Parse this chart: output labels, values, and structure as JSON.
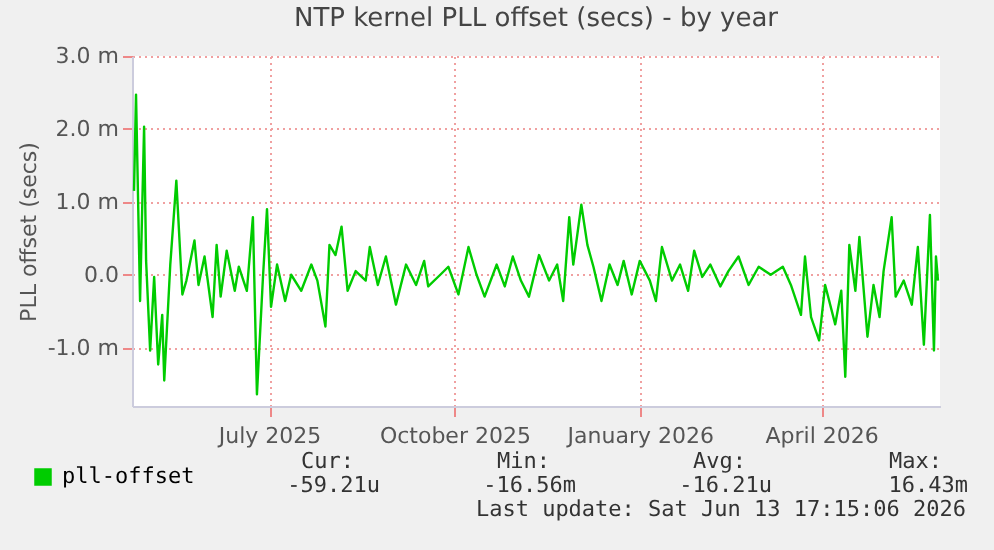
{
  "chart_data": {
    "type": "line",
    "title": "NTP kernel PLL offset (secs) - by year",
    "ylabel": "PLL offset (secs)",
    "xlim": [
      "2025-05-09",
      "2026-06-14"
    ],
    "xticks": [
      {
        "value": "2025-07-16",
        "label": "July 2025"
      },
      {
        "value": "2025-10-16",
        "label": "October 2025"
      },
      {
        "value": "2026-01-16",
        "label": "January 2026"
      },
      {
        "value": "2026-04-16",
        "label": "April 2026"
      }
    ],
    "ylim": [
      -1.8,
      3.0
    ],
    "yticks": [
      {
        "value": -1,
        "label": "-1.0 m"
      },
      {
        "value": 0,
        "label": "0.0"
      },
      {
        "value": 1,
        "label": "1.0 m"
      },
      {
        "value": 2,
        "label": "2.0 m"
      },
      {
        "value": 3,
        "label": "3.0 m"
      }
    ],
    "grid": true,
    "legend": "bottom left",
    "marker": "none",
    "line_style": "solid",
    "annotations": [
      "Cur:",
      "Min:",
      "Avg:",
      "Max:",
      "-59.21u",
      "-16.56m",
      "-16.21u",
      "16.43m",
      "Last update: Sat Jun 13 17:15:06 2026"
    ],
    "x": [
      "2025-05-10",
      "2025-05-11",
      "2025-05-13",
      "2025-05-15",
      "2025-05-16",
      "2025-05-18",
      "2025-05-20",
      "2025-05-22",
      "2025-05-24",
      "2025-05-25",
      "2025-05-28",
      "2025-05-31",
      "2025-06-03",
      "2025-06-05",
      "2025-06-09",
      "2025-06-11",
      "2025-06-14",
      "2025-06-18",
      "2025-06-20",
      "2025-06-22",
      "2025-06-25",
      "2025-06-29",
      "2025-07-01",
      "2025-07-05",
      "2025-07-08",
      "2025-07-10",
      "2025-07-13",
      "2025-07-15",
      "2025-07-17",
      "2025-07-20",
      "2025-07-24",
      "2025-07-27",
      "2025-08-01",
      "2025-08-06",
      "2025-08-09",
      "2025-08-13",
      "2025-08-15",
      "2025-08-18",
      "2025-08-21",
      "2025-08-24",
      "2025-08-28",
      "2025-09-02",
      "2025-09-04",
      "2025-09-08",
      "2025-09-12",
      "2025-09-17",
      "2025-09-22",
      "2025-09-27",
      "2025-10-01",
      "2025-10-03",
      "2025-10-09",
      "2025-10-13",
      "2025-10-18",
      "2025-10-23",
      "2025-10-27",
      "2025-10-31",
      "2025-11-06",
      "2025-11-10",
      "2025-11-14",
      "2025-11-18",
      "2025-11-22",
      "2025-11-27",
      "2025-12-02",
      "2025-12-06",
      "2025-12-09",
      "2025-12-12",
      "2025-12-14",
      "2025-12-18",
      "2025-12-21",
      "2025-12-24",
      "2025-12-28",
      "2026-01-01",
      "2026-01-05",
      "2026-01-08",
      "2026-01-12",
      "2026-01-16",
      "2026-01-21",
      "2026-01-24",
      "2026-01-27",
      "2026-02-01",
      "2026-02-05",
      "2026-02-09",
      "2026-02-12",
      "2026-02-16",
      "2026-02-20",
      "2026-02-25",
      "2026-03-01",
      "2026-03-06",
      "2026-03-11",
      "2026-03-16",
      "2026-03-22",
      "2026-03-28",
      "2026-04-01",
      "2026-04-06",
      "2026-04-08",
      "2026-04-11",
      "2026-04-15",
      "2026-04-18",
      "2026-04-23",
      "2026-04-26",
      "2026-04-28",
      "2026-04-30",
      "2026-05-03",
      "2026-05-05",
      "2026-05-09",
      "2026-05-12",
      "2026-05-15",
      "2026-05-17",
      "2026-05-21",
      "2026-05-23",
      "2026-05-27",
      "2026-05-31",
      "2026-06-03",
      "2026-06-06",
      "2026-06-09",
      "2026-06-11",
      "2026-06-12",
      "2026-06-13"
    ],
    "series": [
      {
        "name": "pll-offset",
        "color": "#00cc00",
        "values": [
          1.15,
          2.47,
          -0.36,
          2.03,
          0.19,
          -1.04,
          -0.03,
          -1.23,
          -0.55,
          -1.45,
          0.14,
          1.29,
          -0.27,
          -0.08,
          0.47,
          -0.14,
          0.25,
          -0.58,
          0.41,
          -0.3,
          0.33,
          -0.22,
          0.11,
          -0.22,
          0.79,
          -1.64,
          -0.03,
          0.9,
          -0.44,
          0.14,
          -0.36,
          0.0,
          -0.22,
          0.14,
          -0.08,
          -0.71,
          0.41,
          0.27,
          0.66,
          -0.22,
          0.05,
          -0.08,
          0.38,
          -0.14,
          0.25,
          -0.41,
          0.14,
          -0.14,
          0.19,
          -0.16,
          0.0,
          0.11,
          -0.27,
          0.38,
          0.0,
          -0.3,
          0.14,
          -0.16,
          0.25,
          -0.08,
          -0.3,
          0.27,
          -0.08,
          0.14,
          -0.36,
          0.79,
          0.14,
          0.96,
          0.41,
          0.11,
          -0.36,
          0.14,
          -0.14,
          0.19,
          -0.27,
          0.19,
          -0.08,
          -0.36,
          0.38,
          -0.08,
          0.14,
          -0.22,
          0.33,
          -0.03,
          0.14,
          -0.16,
          0.05,
          0.25,
          -0.14,
          0.11,
          0.0,
          0.11,
          -0.14,
          -0.55,
          0.25,
          -0.58,
          -0.9,
          -0.14,
          -0.68,
          -0.22,
          -1.4,
          0.41,
          -0.22,
          0.52,
          -0.85,
          -0.14,
          -0.58,
          0.05,
          0.79,
          -0.3,
          -0.08,
          -0.41,
          0.38,
          -0.96,
          0.82,
          -1.04,
          0.25,
          -0.08
        ]
      }
    ]
  }
}
